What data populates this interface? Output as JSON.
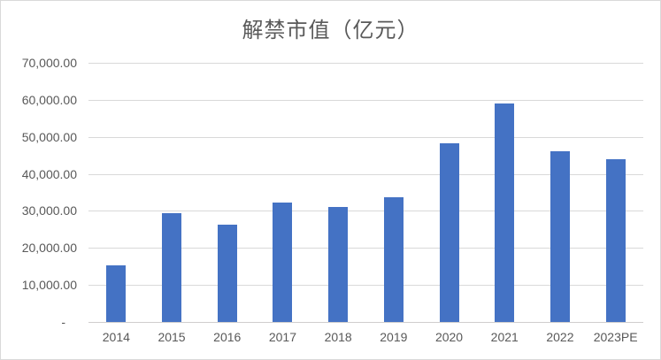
{
  "chart_data": {
    "type": "bar",
    "title": "解禁市值（亿元）",
    "categories": [
      "2014",
      "2015",
      "2016",
      "2017",
      "2018",
      "2019",
      "2020",
      "2021",
      "2022",
      "2023PE"
    ],
    "values": [
      15300,
      29300,
      26400,
      32200,
      31000,
      33600,
      48200,
      59100,
      46200,
      43900
    ],
    "xlabel": "",
    "ylabel": "",
    "ylim": [
      0,
      70000
    ],
    "ytick_interval": 10000,
    "yticks": [
      {
        "label": "70,000.00",
        "value": 70000
      },
      {
        "label": "60,000.00",
        "value": 60000
      },
      {
        "label": "50,000.00",
        "value": 50000
      },
      {
        "label": "40,000.00",
        "value": 40000
      },
      {
        "label": "30,000.00",
        "value": 30000
      },
      {
        "label": "20,000.00",
        "value": 20000
      },
      {
        "label": "10,000.00",
        "value": 10000
      },
      {
        "label": "-",
        "value": 0
      }
    ],
    "grid": true,
    "legend_position": "none",
    "colors": {
      "bar": "#4472c4",
      "gridline": "#d9d9d9",
      "axis_line": "#d0cece",
      "text": "#595959",
      "background": "#ffffff",
      "border": "#d9d9d9"
    }
  }
}
